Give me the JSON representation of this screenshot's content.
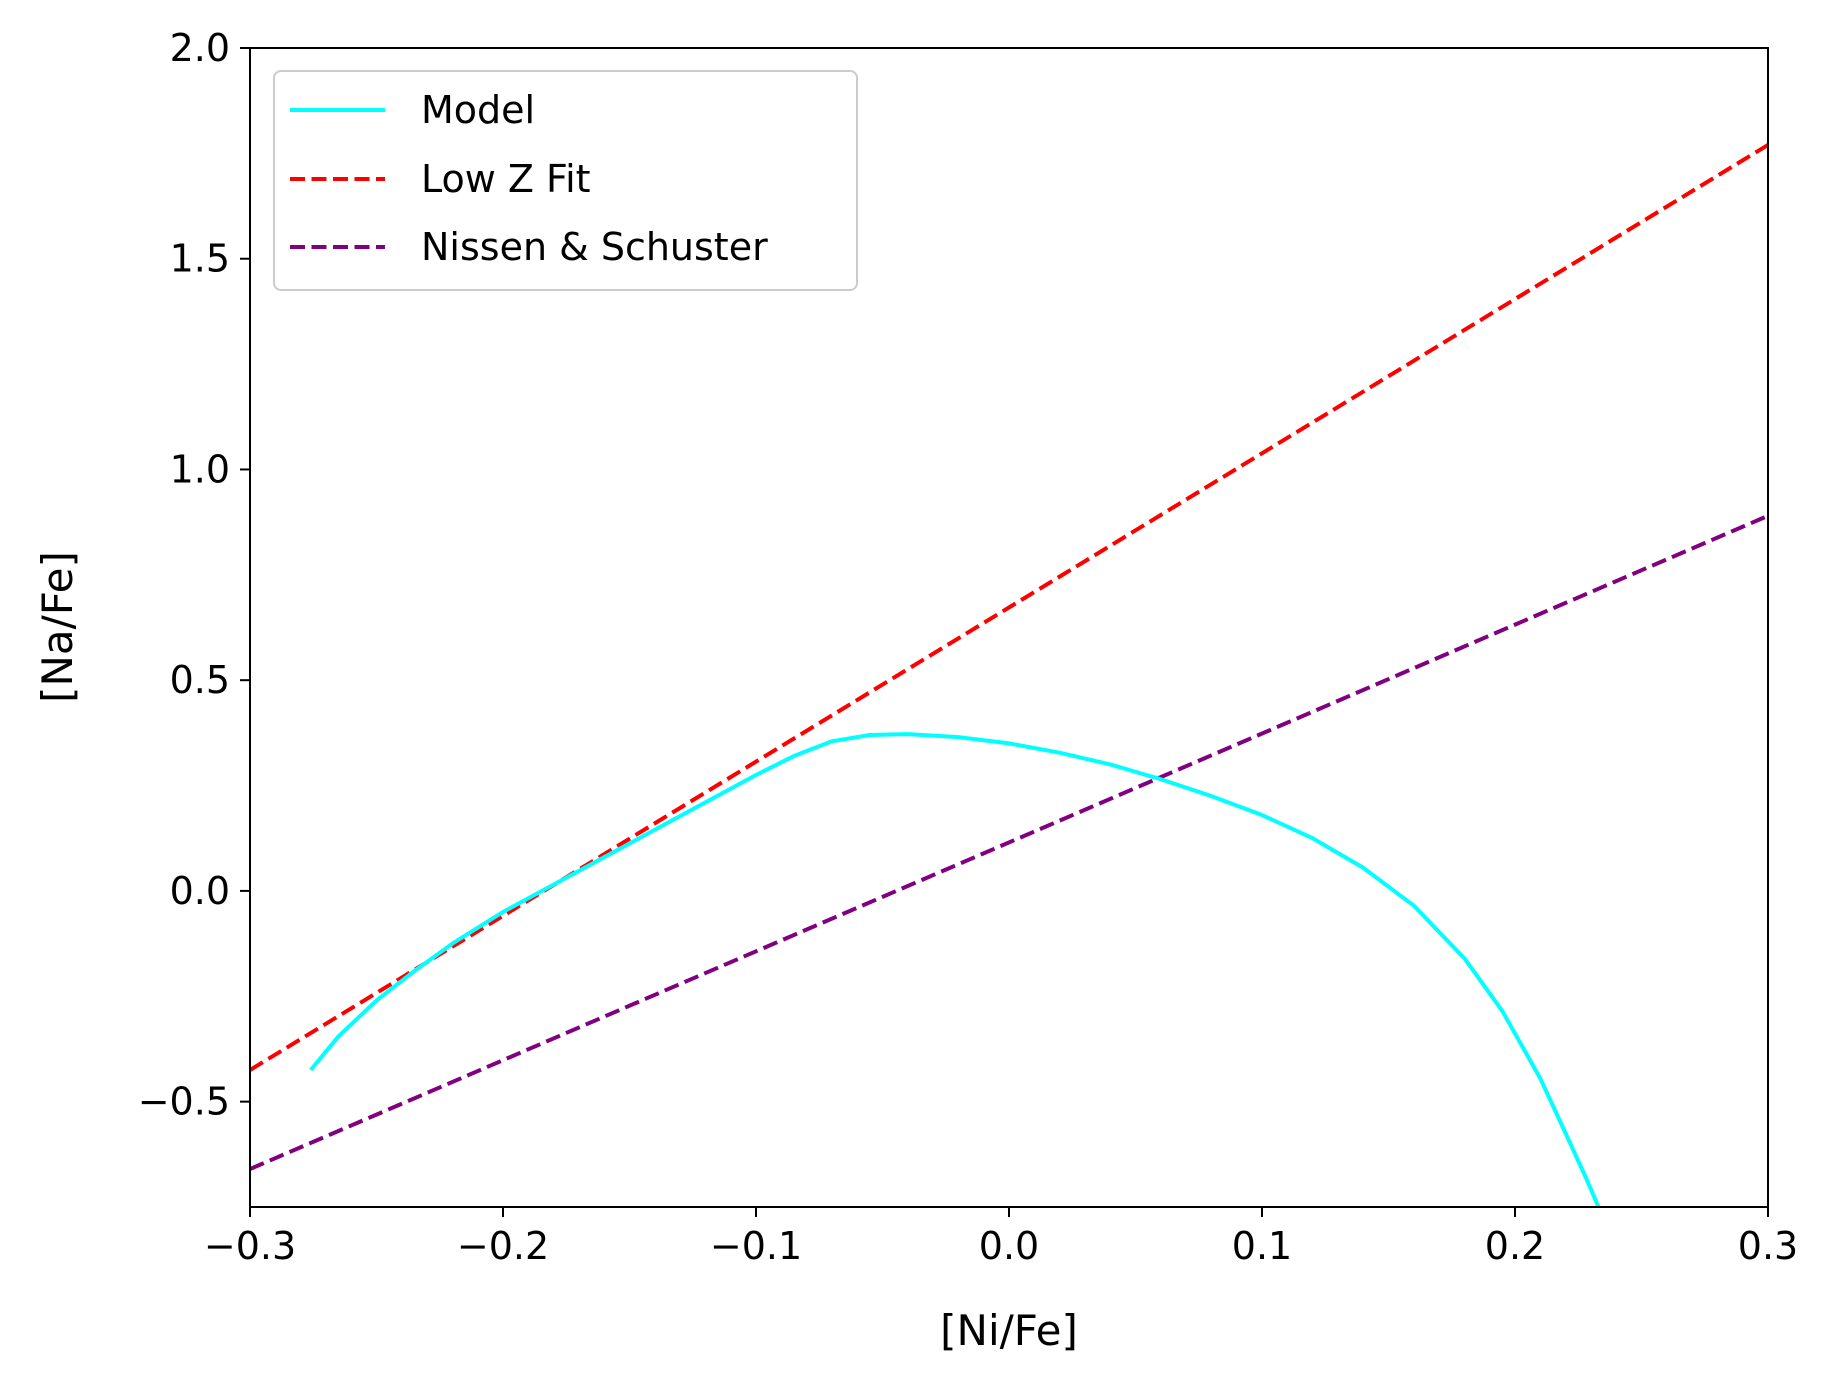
{
  "chart_data": {
    "type": "line",
    "title": "",
    "xlabel": "[Ni/Fe]",
    "ylabel": "[Na/Fe]",
    "xlim": [
      -0.3,
      0.3
    ],
    "ylim": [
      -0.75,
      2.0
    ],
    "xticks": [
      -0.3,
      -0.2,
      -0.1,
      0.0,
      0.1,
      0.2,
      0.3
    ],
    "xtick_labels": [
      "−0.3",
      "−0.2",
      "−0.1",
      "0.0",
      "0.1",
      "0.2",
      "0.3"
    ],
    "yticks": [
      -0.5,
      0.0,
      0.5,
      1.0,
      1.5,
      2.0
    ],
    "ytick_labels": [
      "−0.5",
      "0.0",
      "0.5",
      "1.0",
      "1.5",
      "2.0"
    ],
    "legend_position": "top-left",
    "series": [
      {
        "name": "Model",
        "color": "#00ffff",
        "style": "solid",
        "x": [
          -0.276,
          -0.265,
          -0.25,
          -0.235,
          -0.22,
          -0.2,
          -0.18,
          -0.16,
          -0.14,
          -0.12,
          -0.1,
          -0.085,
          -0.07,
          -0.055,
          -0.04,
          -0.02,
          0.0,
          0.02,
          0.04,
          0.06,
          0.08,
          0.1,
          0.12,
          0.14,
          0.16,
          0.18,
          0.195,
          0.21,
          0.22,
          0.228,
          0.233
        ],
        "y": [
          -0.425,
          -0.345,
          -0.26,
          -0.19,
          -0.125,
          -0.05,
          0.015,
          0.08,
          0.145,
          0.21,
          0.275,
          0.32,
          0.355,
          0.37,
          0.372,
          0.365,
          0.35,
          0.328,
          0.3,
          0.265,
          0.225,
          0.18,
          0.125,
          0.055,
          -0.035,
          -0.16,
          -0.285,
          -0.445,
          -0.575,
          -0.68,
          -0.75
        ]
      },
      {
        "name": "Low Z Fit",
        "color": "#ff0000",
        "style": "dashed",
        "x": [
          -0.3,
          0.3
        ],
        "y": [
          -0.425,
          1.77
        ]
      },
      {
        "name": "Nissen & Schuster",
        "color": "#800080",
        "style": "dashed",
        "x": [
          -0.3,
          0.3
        ],
        "y": [
          -0.66,
          0.89
        ]
      }
    ]
  }
}
